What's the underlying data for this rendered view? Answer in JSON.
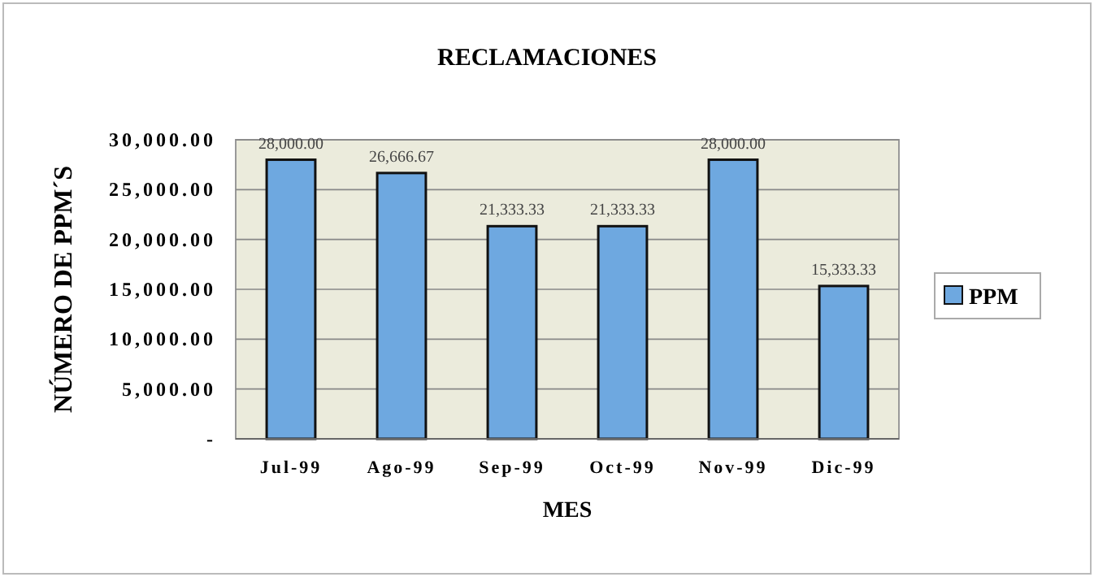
{
  "chart_data": {
    "type": "bar",
    "title": "RECLAMACIONES",
    "xlabel": "MES",
    "ylabel": "NÚMERO DE PPM´S",
    "categories": [
      "Jul-99",
      "Ago-99",
      "Sep-99",
      "Oct-99",
      "Nov-99",
      "Dic-99"
    ],
    "series": [
      {
        "name": "PPM",
        "color": "#6ea8e0",
        "values": [
          28000,
          26666.67,
          21333.33,
          21333.33,
          28000,
          15333.33
        ],
        "value_labels": [
          "28,000.00",
          "26,666.67",
          "21,333.33",
          "21,333.33",
          "28,000.00",
          "15,333.33"
        ]
      }
    ],
    "ylim": [
      0,
      30000
    ],
    "yticks": [
      {
        "value": 0,
        "label": "-"
      },
      {
        "value": 5000,
        "label": "5,000.00"
      },
      {
        "value": 10000,
        "label": "10,000.00"
      },
      {
        "value": 15000,
        "label": "15,000.00"
      },
      {
        "value": 20000,
        "label": "20,000.00"
      },
      {
        "value": 25000,
        "label": "25,000.00"
      },
      {
        "value": 30000,
        "label": "30,000.00"
      }
    ],
    "grid": "y",
    "legend": "right"
  }
}
